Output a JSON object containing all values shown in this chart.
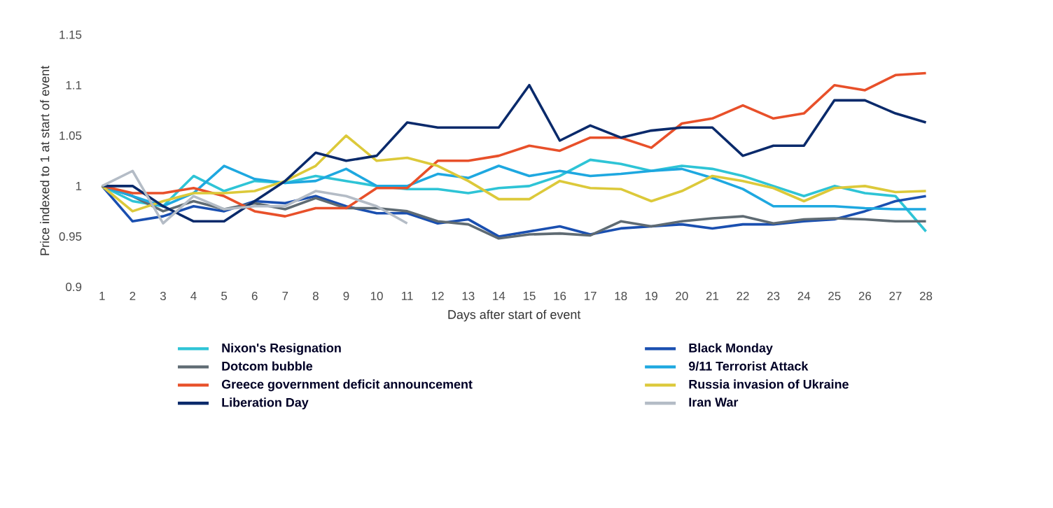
{
  "chart_data": {
    "type": "line",
    "xlabel": "Days after start of event",
    "ylabel": "Price indexed to 1 at start of event",
    "categories": [
      "1",
      "2",
      "3",
      "4",
      "5",
      "6",
      "7",
      "8",
      "9",
      "10",
      "11",
      "12",
      "13",
      "14",
      "15",
      "16",
      "17",
      "18",
      "19",
      "20",
      "21",
      "22",
      "23",
      "24",
      "25",
      "26",
      "27",
      "28"
    ],
    "ylim": [
      0.9,
      1.15
    ],
    "yticks": [
      0.9,
      0.95,
      1,
      1.05,
      1.1,
      1.15
    ],
    "grid": false,
    "legend": "bottom",
    "marker": "none",
    "line_style": "solid",
    "series": [
      {
        "name": "Nixon's Resignation",
        "color": "#2ec4d6",
        "values": [
          1,
          0.985,
          0.98,
          1.01,
          0.995,
          1.005,
          1.003,
          1.01,
          1.005,
          1.0,
          0.997,
          0.997,
          0.993,
          0.998,
          1.0,
          1.01,
          1.026,
          1.022,
          1.015,
          1.02,
          1.017,
          1.01,
          1.0,
          0.99,
          1.0,
          0.993,
          0.99,
          0.955
        ]
      },
      {
        "name": "Black Monday",
        "color": "#1a4fb0",
        "values": [
          1,
          0.965,
          0.97,
          0.98,
          0.975,
          0.985,
          0.983,
          0.99,
          0.98,
          0.973,
          0.973,
          0.963,
          0.967,
          0.95,
          0.955,
          0.96,
          0.952,
          0.958,
          0.96,
          0.962,
          0.958,
          0.962,
          0.962,
          0.965,
          0.967,
          0.975,
          0.985,
          0.99
        ]
      },
      {
        "name": "Dotcom bubble",
        "color": "#5f6b73",
        "values": [
          1,
          0.99,
          0.975,
          0.985,
          0.977,
          0.983,
          0.977,
          0.988,
          0.978,
          0.978,
          0.975,
          0.965,
          0.962,
          0.948,
          0.952,
          0.953,
          0.951,
          0.965,
          0.96,
          0.965,
          0.968,
          0.97,
          0.963,
          0.967,
          0.968,
          0.967,
          0.965,
          0.965
        ]
      },
      {
        "name": "9/11 Terrorist Attack",
        "color": "#1ea8e0",
        "values": [
          1,
          0.99,
          0.98,
          0.993,
          1.02,
          1.007,
          1.003,
          1.005,
          1.017,
          1.0,
          1.0,
          1.012,
          1.008,
          1.02,
          1.01,
          1.015,
          1.01,
          1.012,
          1.015,
          1.017,
          1.008,
          0.997,
          0.98,
          0.98,
          0.98,
          0.978,
          0.977,
          0.977
        ]
      },
      {
        "name": "Greece government deficit announcement",
        "color": "#e8502a",
        "values": [
          1,
          0.993,
          0.993,
          0.998,
          0.99,
          0.975,
          0.97,
          0.978,
          0.978,
          0.998,
          0.998,
          1.025,
          1.025,
          1.03,
          1.04,
          1.035,
          1.048,
          1.048,
          1.038,
          1.062,
          1.067,
          1.08,
          1.067,
          1.072,
          1.1,
          1.095,
          1.11,
          1.112
        ]
      },
      {
        "name": "Russia invasion of Ukraine",
        "color": "#dcc93a",
        "values": [
          1,
          0.975,
          0.985,
          0.993,
          0.993,
          0.995,
          1.005,
          1.02,
          1.05,
          1.025,
          1.028,
          1.02,
          1.005,
          0.987,
          0.987,
          1.005,
          0.998,
          0.997,
          0.985,
          0.995,
          1.01,
          1.005,
          0.998,
          0.985,
          0.998,
          1.0,
          0.994,
          0.995
        ]
      },
      {
        "name": "Liberation Day",
        "color": "#0a2a6b",
        "values": [
          1,
          1.0,
          0.98,
          0.965,
          0.965,
          0.985,
          1.005,
          1.033,
          1.025,
          1.03,
          1.063,
          1.058,
          1.058,
          1.058,
          1.1,
          1.045,
          1.06,
          1.048,
          1.055,
          1.058,
          1.058,
          1.03,
          1.04,
          1.04,
          1.085,
          1.085,
          1.072,
          1.063
        ]
      },
      {
        "name": "Iran War",
        "color": "#b4bcc6",
        "values": [
          1,
          1.015,
          0.963,
          0.99,
          0.977,
          0.98,
          0.98,
          0.995,
          0.99,
          0.98,
          0.963,
          null,
          null,
          null,
          null,
          null,
          null,
          null,
          null,
          null,
          null,
          null,
          null,
          null,
          null,
          null,
          null,
          null
        ]
      }
    ]
  }
}
